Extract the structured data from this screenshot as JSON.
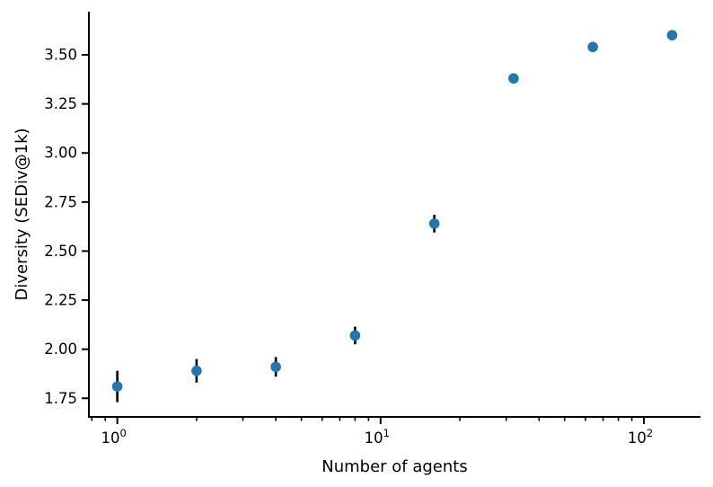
{
  "chart_data": {
    "type": "scatter",
    "title": "",
    "xlabel": "Number of agents",
    "ylabel": "Diversity (SEDiv@1k)",
    "x_scale": "log",
    "y_scale": "linear",
    "x": [
      1,
      2,
      4,
      8,
      16,
      32,
      64,
      128
    ],
    "y": [
      1.81,
      1.89,
      1.91,
      2.07,
      2.64,
      3.38,
      3.54,
      3.6
    ],
    "yerr": [
      0.08,
      0.06,
      0.05,
      0.045,
      0.045,
      0.01,
      0.01,
      0.01
    ],
    "xlim": [
      0.78,
      164
    ],
    "ylim": [
      1.655,
      3.72
    ],
    "y_ticks": [
      1.75,
      2.0,
      2.25,
      2.5,
      2.75,
      3.0,
      3.25,
      3.5
    ],
    "y_tick_labels": [
      "1.75",
      "2.00",
      "2.25",
      "2.50",
      "2.75",
      "3.00",
      "3.25",
      "3.50"
    ],
    "x_major_ticks": [
      1,
      10,
      100
    ],
    "x_major_tick_labels": [
      {
        "base": "10",
        "exponent": "0"
      },
      {
        "base": "10",
        "exponent": "1"
      },
      {
        "base": "10",
        "exponent": "2"
      }
    ],
    "x_minor_ticks": [
      0.8,
      0.9,
      2,
      3,
      4,
      5,
      6,
      7,
      8,
      9,
      20,
      30,
      40,
      50,
      60,
      70,
      80,
      90
    ],
    "grid": false,
    "legend": null,
    "marker_color": "#1f77b4",
    "errorbar_color": "#000000",
    "axis_color": "#000000"
  }
}
